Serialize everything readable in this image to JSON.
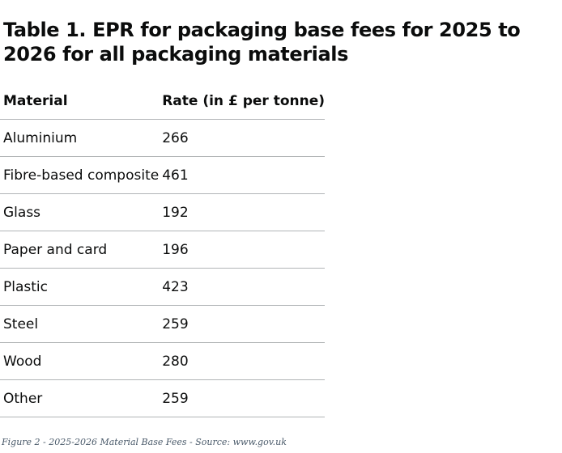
{
  "table": {
    "title": "Table 1. EPR for packaging base fees for 2025 to 2026 for all packaging materials",
    "headers": {
      "material": "Material",
      "rate": "Rate (in £ per tonne)"
    },
    "rows": [
      {
        "material": "Aluminium",
        "rate": "266"
      },
      {
        "material": "Fibre-based composite",
        "rate": "461"
      },
      {
        "material": "Glass",
        "rate": "192"
      },
      {
        "material": "Paper and card",
        "rate": "196"
      },
      {
        "material": "Plastic",
        "rate": "423"
      },
      {
        "material": "Steel",
        "rate": "259"
      },
      {
        "material": "Wood",
        "rate": "280"
      },
      {
        "material": "Other",
        "rate": "259"
      }
    ]
  },
  "caption": "Figure 2 - 2025-2026 Material Base Fees - Source: www.gov.uk"
}
